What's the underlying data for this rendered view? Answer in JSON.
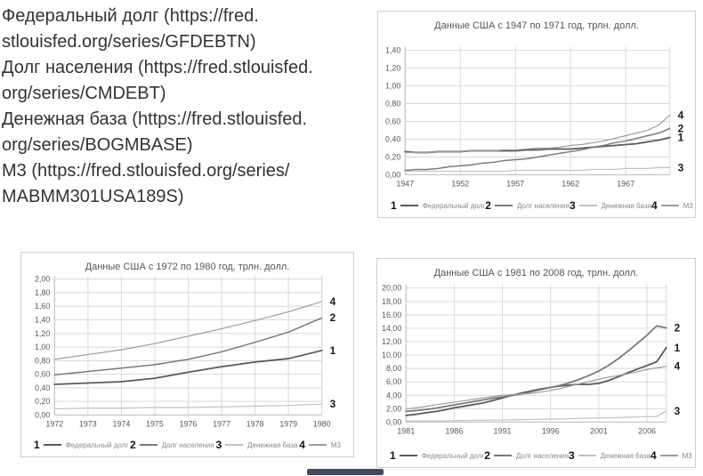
{
  "sources": {
    "lines": [
      "Федеральный долг (https://fred.",
      "stlouisfed.org/series/GFDEBTN)",
      "Долг населения (https://fred.stlouisfed.",
      "org/series/CMDEBT)",
      "Денежная база (https://fred.stlouisfed.",
      "org/series/BOGMBASE)",
      "M3 (https://fred.stlouisfed.org/series/",
      "MABMM301USA189S)"
    ]
  },
  "colors": {
    "grid": "#d9d9d9",
    "axis": "#bfbfbf",
    "tick_text": "#595959",
    "side_label": "#1a1a1a",
    "card_border": "#cfcfcf"
  },
  "chart_data": [
    {
      "type": "line",
      "title": "Данные США с 1947 по 1971 год, трлн. долл.",
      "x_start": 1947,
      "x_end": 1971,
      "x_tick_labels": [
        "1947",
        "1952",
        "1957",
        "1962",
        "1967"
      ],
      "x_tick_indices": [
        0,
        5,
        10,
        15,
        20
      ],
      "ylim": [
        0,
        1.4
      ],
      "y_step": 0.2,
      "y_tick_labels": [
        "1,40",
        "1,20",
        "1,00",
        "0,80",
        "0,60",
        "0,40",
        "0,20",
        "0,00"
      ],
      "grid": true,
      "legend_position": "bottom",
      "series": [
        {
          "num": "1",
          "name": "Федеральный долг",
          "color": "#5a5a5a",
          "width": 1.8,
          "values": [
            0.26,
            0.25,
            0.25,
            0.26,
            0.26,
            0.26,
            0.27,
            0.27,
            0.27,
            0.27,
            0.27,
            0.28,
            0.28,
            0.29,
            0.29,
            0.29,
            0.3,
            0.31,
            0.32,
            0.33,
            0.34,
            0.35,
            0.37,
            0.39,
            0.42
          ]
        },
        {
          "num": "2",
          "name": "Долг населения",
          "color": "#7a7a7a",
          "width": 1.5,
          "values": [
            0.05,
            0.06,
            0.06,
            0.07,
            0.09,
            0.1,
            0.11,
            0.13,
            0.14,
            0.16,
            0.17,
            0.18,
            0.2,
            0.22,
            0.24,
            0.26,
            0.28,
            0.31,
            0.33,
            0.36,
            0.38,
            0.41,
            0.44,
            0.47,
            0.52
          ]
        },
        {
          "num": "3",
          "name": "Денежная база",
          "color": "#c2c2c2",
          "width": 1.2,
          "values": [
            0.04,
            0.04,
            0.04,
            0.04,
            0.04,
            0.04,
            0.04,
            0.04,
            0.04,
            0.04,
            0.05,
            0.05,
            0.05,
            0.05,
            0.05,
            0.05,
            0.05,
            0.06,
            0.06,
            0.06,
            0.07,
            0.07,
            0.07,
            0.08,
            0.08
          ]
        },
        {
          "num": "4",
          "name": "М3",
          "color": "#9e9e9e",
          "width": 1.2,
          "values": [
            0.25,
            0.25,
            0.25,
            0.26,
            0.26,
            0.26,
            0.27,
            0.27,
            0.27,
            0.28,
            0.28,
            0.29,
            0.3,
            0.3,
            0.31,
            0.33,
            0.34,
            0.36,
            0.38,
            0.41,
            0.44,
            0.47,
            0.5,
            0.56,
            0.67
          ]
        }
      ]
    },
    {
      "type": "line",
      "title": "Данные США с 1972 по 1980 год, трлн. долл.",
      "x_start": 1972,
      "x_end": 1980,
      "x_tick_labels": [
        "1972",
        "1973",
        "1974",
        "1975",
        "1976",
        "1977",
        "1978",
        "1979",
        "1980"
      ],
      "x_tick_indices": [
        0,
        1,
        2,
        3,
        4,
        5,
        6,
        7,
        8
      ],
      "ylim": [
        0,
        2.0
      ],
      "y_step": 0.2,
      "y_tick_labels": [
        "2,00",
        "1,80",
        "1,60",
        "1,40",
        "1,20",
        "1,00",
        "0,80",
        "0,60",
        "0,40",
        "0,20",
        "0,00"
      ],
      "grid": true,
      "legend_position": "bottom",
      "series": [
        {
          "num": "1",
          "name": "Федеральный долг",
          "color": "#5a5a5a",
          "width": 1.8,
          "values": [
            0.45,
            0.47,
            0.49,
            0.54,
            0.63,
            0.71,
            0.78,
            0.83,
            0.95
          ]
        },
        {
          "num": "2",
          "name": "Долг населения",
          "color": "#7a7a7a",
          "width": 1.5,
          "values": [
            0.59,
            0.64,
            0.69,
            0.74,
            0.82,
            0.93,
            1.07,
            1.22,
            1.43
          ]
        },
        {
          "num": "3",
          "name": "Денежная база",
          "color": "#c2c2c2",
          "width": 1.2,
          "values": [
            0.09,
            0.1,
            0.1,
            0.11,
            0.11,
            0.12,
            0.13,
            0.14,
            0.16
          ]
        },
        {
          "num": "4",
          "name": "М3",
          "color": "#9e9e9e",
          "width": 1.2,
          "values": [
            0.82,
            0.89,
            0.96,
            1.05,
            1.16,
            1.27,
            1.39,
            1.52,
            1.67
          ]
        }
      ]
    },
    {
      "type": "line",
      "title": "Данные США с 1981 по 2008 год, трлн. долл.",
      "x_start": 1981,
      "x_end": 2008,
      "x_tick_labels": [
        "1981",
        "1986",
        "1991",
        "1996",
        "2001",
        "2006"
      ],
      "x_tick_indices": [
        0,
        5,
        10,
        15,
        20,
        25
      ],
      "ylim": [
        0,
        20
      ],
      "y_step": 2,
      "y_tick_labels": [
        "20,00",
        "18,00",
        "16,00",
        "14,00",
        "12,00",
        "10,00",
        "8,00",
        "6,00",
        "4,00",
        "2,00",
        "0,00"
      ],
      "grid": true,
      "legend_position": "bottom",
      "series": [
        {
          "num": "1",
          "name": "Федеральный долг",
          "color": "#5a5a5a",
          "width": 1.8,
          "values": [
            1.0,
            1.15,
            1.38,
            1.57,
            1.82,
            2.13,
            2.35,
            2.6,
            2.87,
            3.21,
            3.6,
            4.0,
            4.35,
            4.64,
            4.95,
            5.18,
            5.4,
            5.52,
            5.65,
            5.63,
            5.77,
            6.2,
            6.75,
            7.35,
            7.91,
            8.45,
            9.0,
            11.1
          ]
        },
        {
          "num": "2",
          "name": "Долг населения",
          "color": "#7a7a7a",
          "width": 1.8,
          "values": [
            1.6,
            1.72,
            1.87,
            2.07,
            2.31,
            2.57,
            2.82,
            3.07,
            3.32,
            3.57,
            3.76,
            3.96,
            4.2,
            4.53,
            4.85,
            5.17,
            5.49,
            5.9,
            6.4,
            6.96,
            7.6,
            8.45,
            9.45,
            10.55,
            11.75,
            12.95,
            14.35,
            14.05
          ]
        },
        {
          "num": "3",
          "name": "Денежная база",
          "color": "#c2c2c2",
          "width": 1.2,
          "values": [
            0.16,
            0.17,
            0.18,
            0.19,
            0.2,
            0.22,
            0.24,
            0.26,
            0.27,
            0.29,
            0.31,
            0.34,
            0.37,
            0.4,
            0.42,
            0.44,
            0.47,
            0.5,
            0.57,
            0.59,
            0.62,
            0.66,
            0.69,
            0.72,
            0.76,
            0.8,
            0.83,
            1.66
          ]
        },
        {
          "num": "4",
          "name": "М3",
          "color": "#9e9e9e",
          "width": 1.2,
          "values": [
            1.96,
            2.13,
            2.33,
            2.57,
            2.78,
            2.99,
            3.19,
            3.4,
            3.62,
            3.82,
            4.0,
            4.1,
            4.18,
            4.28,
            4.48,
            4.72,
            5.0,
            5.37,
            5.72,
            6.05,
            6.4,
            6.7,
            6.95,
            7.2,
            7.52,
            7.86,
            8.1,
            8.33
          ]
        }
      ]
    }
  ]
}
